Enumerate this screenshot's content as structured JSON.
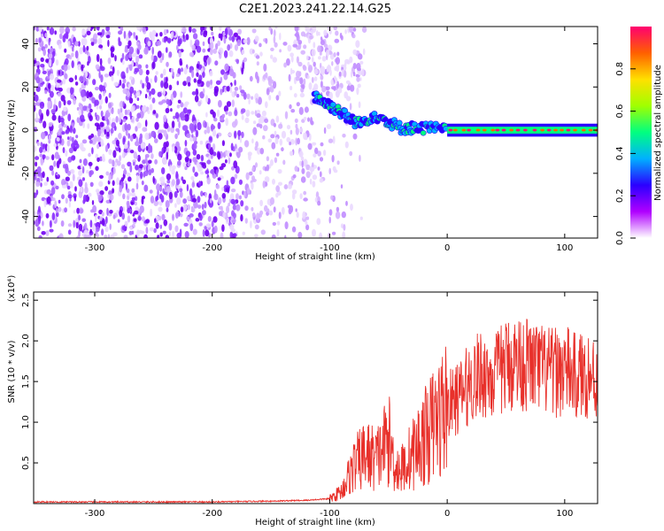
{
  "title": "C2E1.2023.241.22.14.G25",
  "colors": {
    "snr_line": "#e8302a",
    "axis": "#000000",
    "colormap": [
      "#ffffff",
      "#b000ff",
      "#2b00ff",
      "#00b0ff",
      "#00ff80",
      "#a0ff00",
      "#ffe000",
      "#ff6000",
      "#ff0070"
    ]
  },
  "chart_data": [
    {
      "type": "heatmap",
      "name": "spectrogram",
      "xlabel": "Height of straight line (km)",
      "ylabel": "Frequency (Hz)",
      "xlim": [
        -352,
        128
      ],
      "ylim": [
        -50,
        48
      ],
      "xticks": [
        -300,
        -200,
        -100,
        0,
        100
      ],
      "xtick_labels": [
        "-300",
        "-200",
        "-100",
        "0",
        "100"
      ],
      "yticks": [
        -40,
        -20,
        0,
        20,
        40
      ],
      "ytick_labels": [
        "-40",
        "-20",
        "0",
        "20",
        "40"
      ],
      "colorbar": {
        "label": "Normalized spectral amplitude",
        "range": [
          0,
          1
        ],
        "ticks": [
          0.0,
          0.2,
          0.4,
          0.6,
          0.8
        ],
        "tick_labels": [
          "0.0",
          "0.2",
          "0.4",
          "0.6",
          "0.8"
        ]
      },
      "features": {
        "noise_region_x": [
          -352,
          -95
        ],
        "descending_trace": [
          [
            -113,
            16
          ],
          [
            -105,
            13
          ],
          [
            -95,
            10
          ],
          [
            -85,
            6
          ],
          [
            -75,
            3
          ],
          [
            -62,
            7
          ],
          [
            -50,
            4
          ],
          [
            -40,
            1
          ],
          [
            -30,
            1
          ],
          [
            -15,
            1
          ],
          [
            0,
            0
          ]
        ],
        "carrier_line": {
          "x": [
            0,
            128
          ],
          "frequency": 0
        }
      }
    },
    {
      "type": "line",
      "name": "snr",
      "xlabel": "Height of straight line (km)",
      "ylabel": "SNR (10 * v/v)",
      "y_multiplier": "(x10⁴)",
      "xlim": [
        -352,
        128
      ],
      "ylim": [
        0,
        2.6
      ],
      "xticks": [
        -300,
        -200,
        -100,
        0,
        100
      ],
      "xtick_labels": [
        "-300",
        "-200",
        "-100",
        "0",
        "100"
      ],
      "yticks": [
        0.5,
        1.0,
        1.5,
        2.0,
        2.5
      ],
      "ytick_labels": [
        "0.5",
        "1.0",
        "1.5",
        "2.0",
        "2.5"
      ],
      "series": [
        {
          "x": [
            -352,
            -300,
            -250,
            -200,
            -150,
            -120,
            -100,
            -90,
            -80,
            -70,
            -60,
            -50,
            -45,
            -40,
            -30,
            -20,
            -10,
            0,
            10,
            20,
            30,
            40,
            50,
            60,
            70,
            80,
            90,
            100,
            110,
            120,
            128
          ],
          "values": [
            0.02,
            0.02,
            0.02,
            0.02,
            0.03,
            0.04,
            0.06,
            0.15,
            0.45,
            0.6,
            0.55,
            0.8,
            0.5,
            0.4,
            0.6,
            0.8,
            1.0,
            1.2,
            1.3,
            1.5,
            1.6,
            1.55,
            1.7,
            1.75,
            1.7,
            1.65,
            1.6,
            1.65,
            1.55,
            1.6,
            1.5
          ]
        }
      ]
    }
  ]
}
